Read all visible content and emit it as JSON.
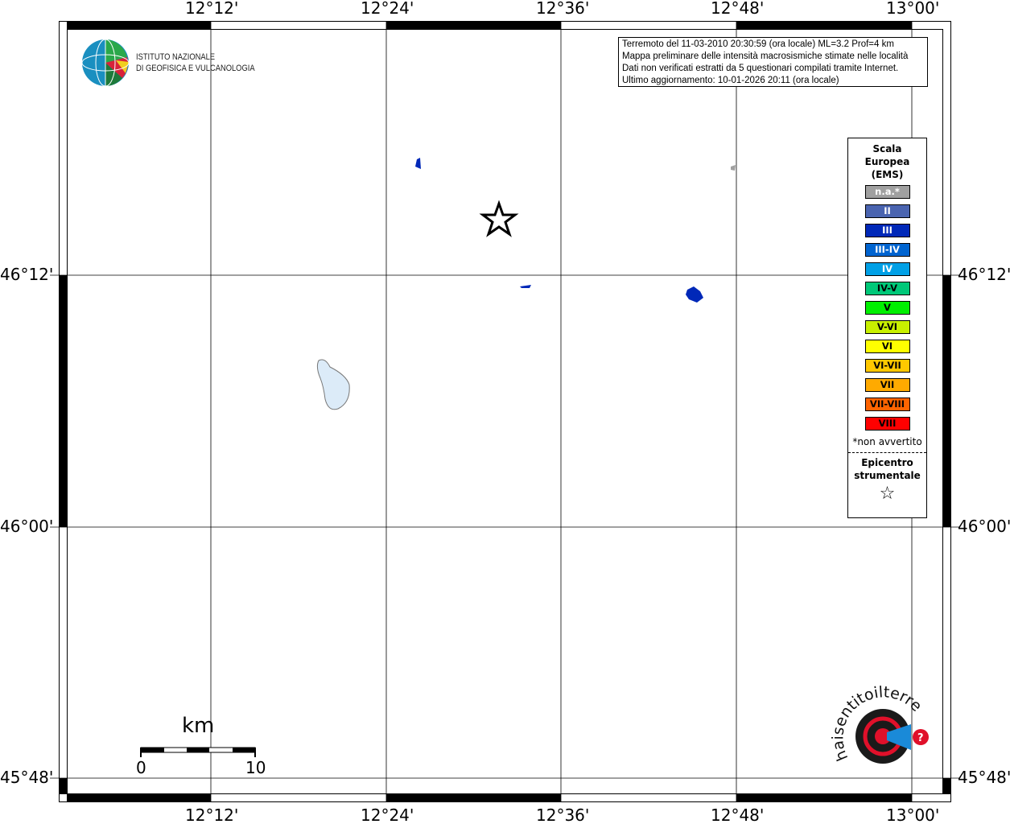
{
  "map": {
    "lon_ticks": [
      "12°12'",
      "12°24'",
      "12°36'",
      "12°48'",
      "13°00'"
    ],
    "lat_ticks": [
      "46°12'",
      "46°00'",
      "45°48'"
    ],
    "epicenter_icon": "star-icon"
  },
  "info": {
    "lines": [
      "Terremoto del 11-03-2010 20:30:59 (ora locale) ML=3.2 Prof=4 km",
      "Mappa preliminare delle intensità macrosismiche stimate nelle località",
      "Dati non verificati estratti da 5 questionari compilati tramite Internet.",
      "Ultimo aggiornamento: 10-01-2026 20:11 (ora locale)"
    ]
  },
  "institute": {
    "line1": "ISTITUTO NAZIONALE",
    "line2": "DI GEOFISICA E VULCANOLOGIA"
  },
  "legend": {
    "title": [
      "Scala",
      "Europea",
      "(EMS)"
    ],
    "classes": [
      {
        "label": "n.a.*",
        "color": "#a0a0a0",
        "text": "#ffffff"
      },
      {
        "label": "II",
        "color": "#4a64b0",
        "text": "#ffffff"
      },
      {
        "label": "III",
        "color": "#0028b8",
        "text": "#ffffff"
      },
      {
        "label": "III-IV",
        "color": "#0064d0",
        "text": "#ffffff"
      },
      {
        "label": "IV",
        "color": "#00a0e6",
        "text": "#ffffff"
      },
      {
        "label": "IV-V",
        "color": "#00c878",
        "text": "#000000"
      },
      {
        "label": "V",
        "color": "#00f000",
        "text": "#000000"
      },
      {
        "label": "V-VI",
        "color": "#c8f000",
        "text": "#000000"
      },
      {
        "label": "VI",
        "color": "#ffff00",
        "text": "#000000"
      },
      {
        "label": "VI-VII",
        "color": "#ffc800",
        "text": "#000000"
      },
      {
        "label": "VII",
        "color": "#ffaa00",
        "text": "#000000"
      },
      {
        "label": "VII-VIII",
        "color": "#ff6400",
        "text": "#000000"
      },
      {
        "label": "VIII",
        "color": "#ff0000",
        "text": "#000000"
      }
    ],
    "note": "*non avvertito",
    "epicenter": [
      "Epicentro",
      "strumentale"
    ]
  },
  "scale_bar": {
    "unit": "km",
    "start": "0",
    "end": "10"
  },
  "watermark": "www.haisentitoilterremoto.it"
}
